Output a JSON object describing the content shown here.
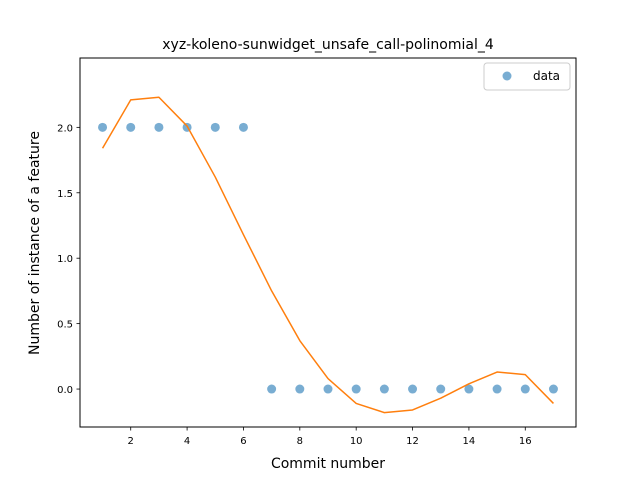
{
  "chart_data": {
    "type": "scatter",
    "title": "xyz-koleno-sunwidget_unsafe_call-polinomial_4",
    "xlabel": "Commit number",
    "ylabel": "Number of instance of a feature",
    "xlim": [
      0.2,
      17.8
    ],
    "ylim": [
      -0.29,
      2.53
    ],
    "xticks": [
      2,
      4,
      6,
      8,
      10,
      12,
      14,
      16
    ],
    "yticks": [
      0.0,
      0.5,
      1.0,
      1.5,
      2.0
    ],
    "xtick_labels": [
      "2",
      "4",
      "6",
      "8",
      "10",
      "12",
      "14",
      "16"
    ],
    "ytick_labels": [
      "0.0",
      "0.5",
      "1.0",
      "1.5",
      "2.0"
    ],
    "grid": false,
    "legend_position": "top-right",
    "series": [
      {
        "name": "data",
        "kind": "scatter",
        "color": "#1f77b4",
        "x": [
          1,
          2,
          3,
          4,
          5,
          6,
          7,
          8,
          9,
          10,
          11,
          12,
          13,
          14,
          15,
          16,
          17
        ],
        "y": [
          2,
          2,
          2,
          2,
          2,
          2,
          0,
          0,
          0,
          0,
          0,
          0,
          0,
          0,
          0,
          0,
          0
        ]
      },
      {
        "kind": "line",
        "color": "#ff7f0e",
        "x": [
          1,
          2,
          3,
          4,
          5,
          6,
          7,
          8,
          9,
          10,
          11,
          12,
          13,
          14,
          15,
          16,
          17
        ],
        "y": [
          1.84,
          2.21,
          2.23,
          2.01,
          1.62,
          1.18,
          0.75,
          0.37,
          0.08,
          -0.11,
          -0.18,
          -0.16,
          -0.07,
          0.04,
          0.13,
          0.11,
          -0.11
        ]
      }
    ]
  }
}
